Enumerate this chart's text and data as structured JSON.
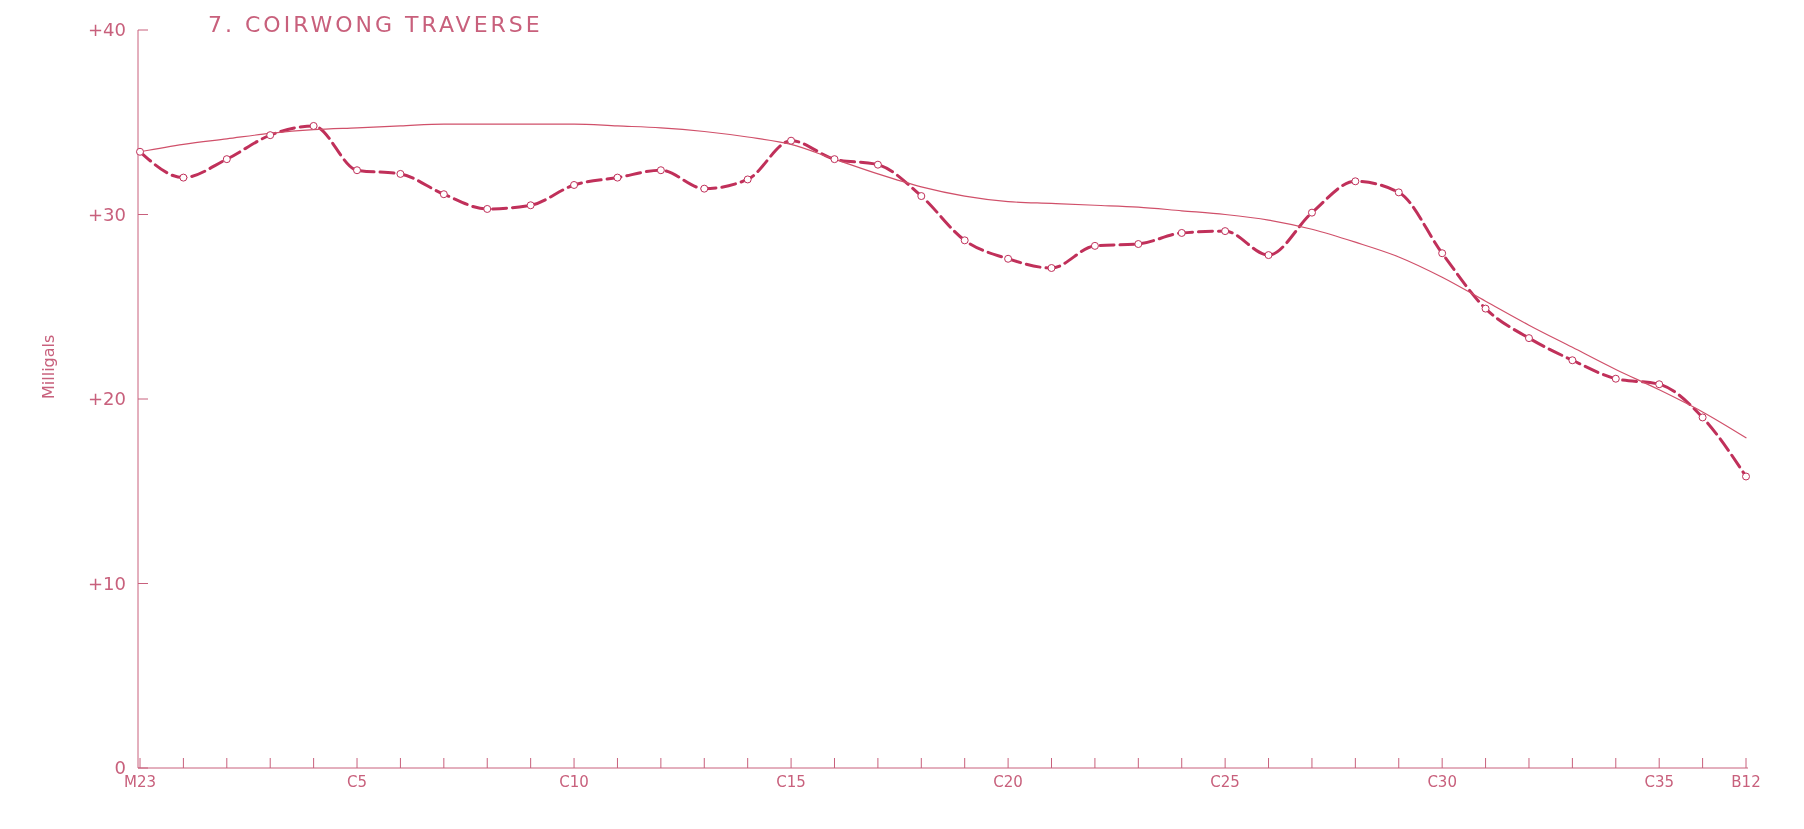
{
  "chart_data": {
    "type": "line",
    "title": "7.  COIRWONG TRAVERSE",
    "ylabel": "Milligals",
    "categories": [
      "M23",
      null,
      null,
      null,
      null,
      "C5",
      null,
      null,
      null,
      null,
      "C10",
      null,
      null,
      null,
      null,
      "C15",
      null,
      null,
      null,
      null,
      "C20",
      null,
      null,
      null,
      null,
      "C25",
      null,
      null,
      null,
      null,
      "C30",
      null,
      null,
      null,
      null,
      "C35",
      null,
      "B12"
    ],
    "series": [
      {
        "color": "#c0305a",
        "marker": "circle",
        "line_style": "dashed",
        "values": [
          33.4,
          32.0,
          33.0,
          34.3,
          34.8,
          32.4,
          32.2,
          31.1,
          30.3,
          30.5,
          31.6,
          32.0,
          32.4,
          31.4,
          31.9,
          34.0,
          33.0,
          32.7,
          31.0,
          28.6,
          27.6,
          27.1,
          28.3,
          28.4,
          29.0,
          29.1,
          27.8,
          30.1,
          31.8,
          31.2,
          27.9,
          24.9,
          23.3,
          22.1,
          21.1,
          20.8,
          19.0,
          15.8
        ]
      },
      {
        "color": "#d0506a",
        "marker": "none",
        "line_style": "solid",
        "values": [
          33.4,
          33.8,
          34.1,
          34.4,
          34.6,
          34.7,
          34.8,
          34.9,
          34.9,
          34.9,
          34.9,
          34.8,
          34.7,
          34.5,
          34.2,
          33.8,
          33.0,
          32.2,
          31.5,
          31.0,
          30.7,
          30.6,
          30.5,
          30.4,
          30.2,
          30.0,
          29.7,
          29.2,
          28.5,
          27.7,
          26.6,
          25.3,
          24.0,
          22.8,
          21.6,
          20.5,
          19.3,
          17.9
        ]
      }
    ],
    "ylim": [
      0,
      40
    ],
    "yticks": [
      {
        "value": 0,
        "label": "0"
      },
      {
        "value": 10,
        "label": "+10"
      },
      {
        "value": 20,
        "label": "+20"
      },
      {
        "value": 30,
        "label": "+30"
      },
      {
        "value": 40,
        "label": "+40"
      }
    ],
    "grid": false,
    "legend": false
  }
}
